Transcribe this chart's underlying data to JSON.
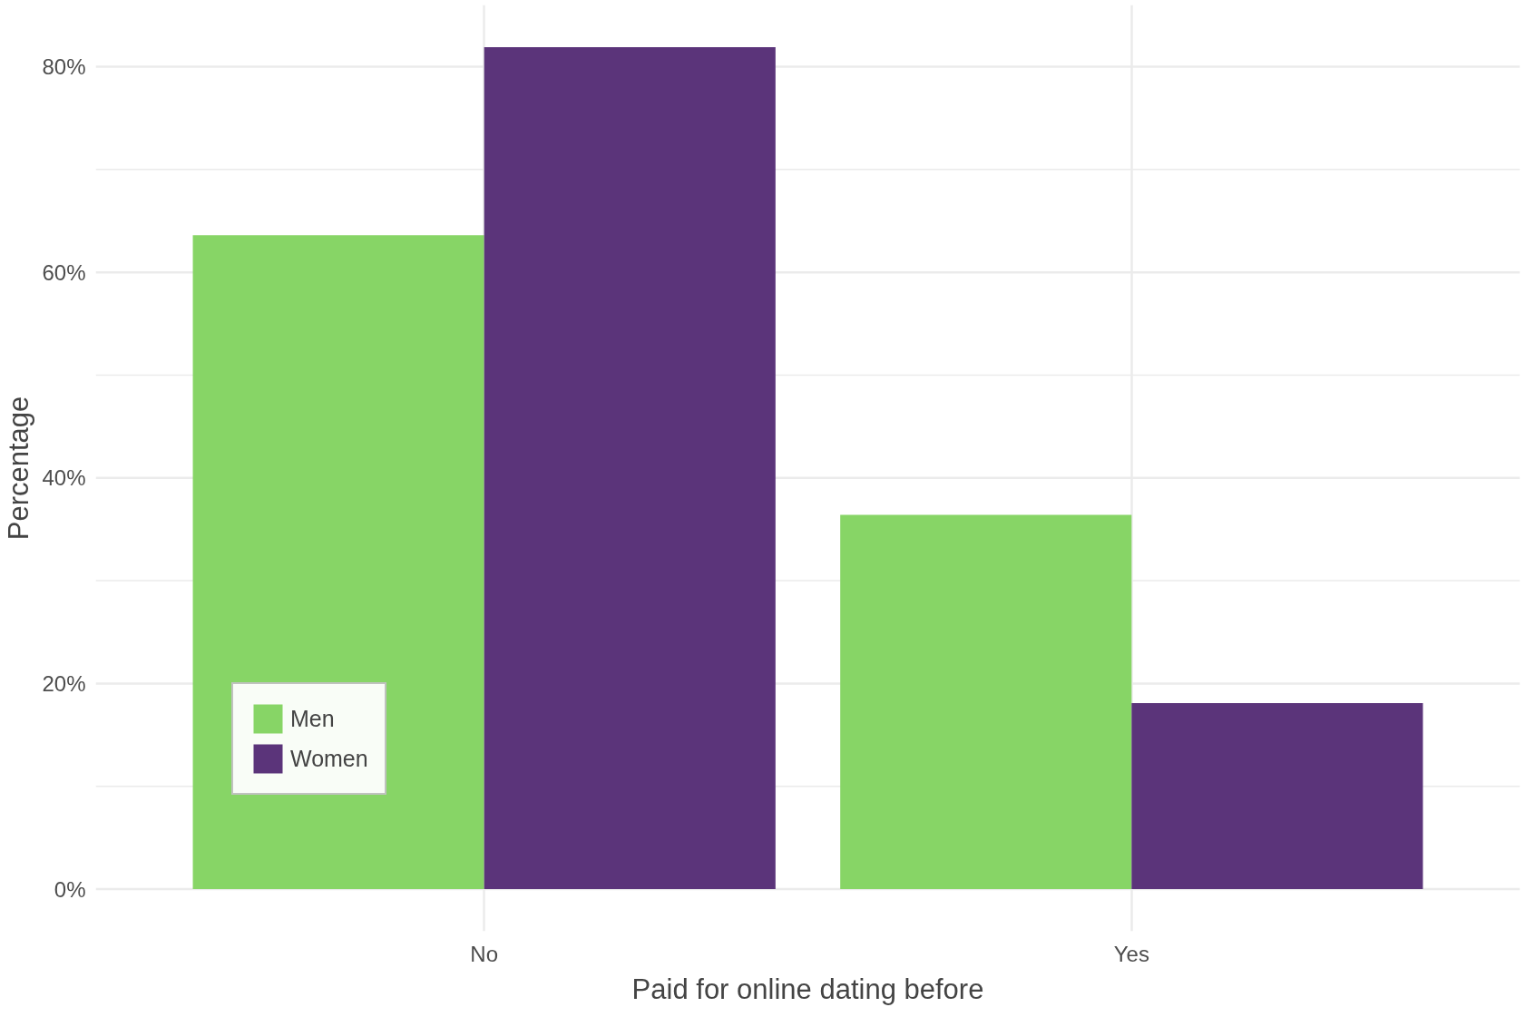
{
  "chart_data": {
    "type": "bar",
    "xlabel": "Paid for online dating before",
    "ylabel": "Percentage",
    "categories": [
      "No",
      "Yes"
    ],
    "series": [
      {
        "name": "Men",
        "color": "#87d566",
        "values": [
          63.6,
          36.4
        ]
      },
      {
        "name": "Women",
        "color": "#5b347a",
        "values": [
          81.9,
          18.1
        ]
      }
    ],
    "ylim": [
      -4.1,
      86
    ],
    "yticks": [
      {
        "value": 0,
        "label": "0%"
      },
      {
        "value": 10,
        "label": null
      },
      {
        "value": 20,
        "label": "20%"
      },
      {
        "value": 30,
        "label": null
      },
      {
        "value": 40,
        "label": "40%"
      },
      {
        "value": 50,
        "label": null
      },
      {
        "value": 60,
        "label": "60%"
      },
      {
        "value": 70,
        "label": null
      },
      {
        "value": 80,
        "label": "80%"
      }
    ],
    "grid": true,
    "legend": "bottom left"
  }
}
